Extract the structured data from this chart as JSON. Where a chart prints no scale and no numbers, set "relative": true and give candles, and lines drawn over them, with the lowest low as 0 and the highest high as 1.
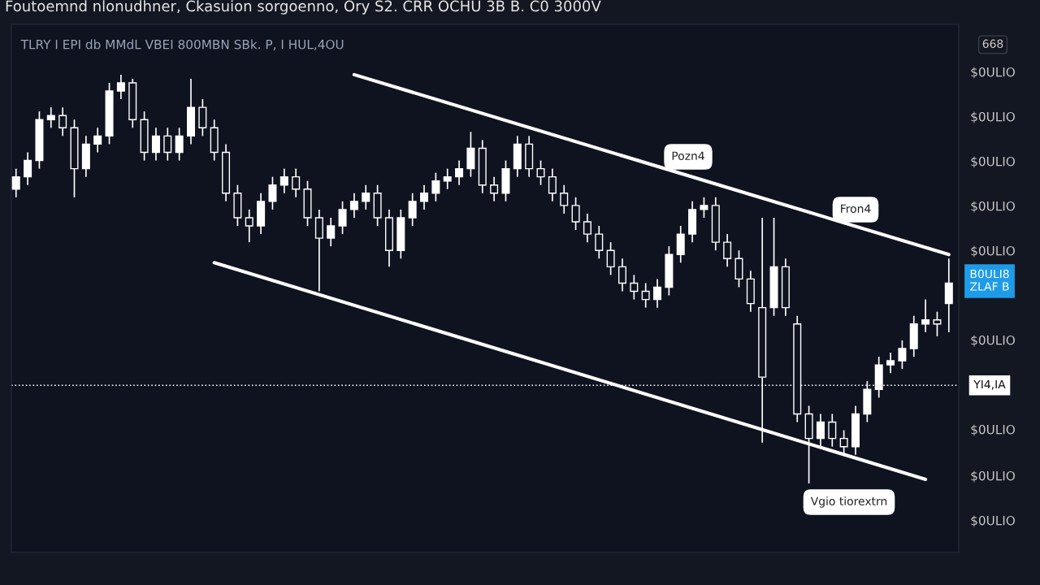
{
  "chart_data": {
    "type": "candlestick",
    "relative": true,
    "title": "Foutoemnd nlonudhner, Ckasuion sorgoenno, Ory S2. CRR OCHU 3B B. C0 3000V",
    "subtitle": "TLRY I EPI db MMdL VBEI 800MBN SBk. P, I HUL,4OU",
    "categories": [
      null,
      null,
      null,
      null,
      null,
      null,
      null,
      null,
      null,
      null,
      null,
      null,
      null,
      null,
      null,
      null,
      null,
      null,
      null,
      null,
      null,
      null,
      null,
      null,
      null,
      null,
      null,
      null,
      null,
      null,
      null,
      null,
      null,
      null,
      null,
      null,
      null,
      null,
      null,
      null,
      null,
      null,
      null,
      null,
      null,
      null,
      null,
      null,
      null,
      null,
      null,
      null,
      null,
      null,
      null,
      null,
      null,
      null,
      null,
      null,
      null,
      null,
      null,
      null,
      null,
      null,
      null,
      null,
      null,
      null,
      null,
      null,
      null,
      null,
      null,
      null,
      null,
      null,
      null,
      null,
      null
    ],
    "ohlc": [
      [
        0.72,
        0.77,
        0.7,
        0.75
      ],
      [
        0.75,
        0.81,
        0.73,
        0.79
      ],
      [
        0.79,
        0.91,
        0.77,
        0.89
      ],
      [
        0.89,
        0.92,
        0.87,
        0.9
      ],
      [
        0.9,
        0.92,
        0.85,
        0.87
      ],
      [
        0.87,
        0.89,
        0.7,
        0.77
      ],
      [
        0.77,
        0.85,
        0.75,
        0.83
      ],
      [
        0.83,
        0.87,
        0.81,
        0.85
      ],
      [
        0.85,
        0.98,
        0.83,
        0.96
      ],
      [
        0.96,
        1.0,
        0.94,
        0.98
      ],
      [
        0.98,
        0.99,
        0.87,
        0.89
      ],
      [
        0.89,
        0.91,
        0.79,
        0.81
      ],
      [
        0.81,
        0.87,
        0.79,
        0.85
      ],
      [
        0.85,
        0.87,
        0.79,
        0.81
      ],
      [
        0.81,
        0.87,
        0.79,
        0.85
      ],
      [
        0.85,
        0.99,
        0.83,
        0.92
      ],
      [
        0.92,
        0.94,
        0.85,
        0.87
      ],
      [
        0.87,
        0.89,
        0.79,
        0.81
      ],
      [
        0.81,
        0.83,
        0.69,
        0.71
      ],
      [
        0.71,
        0.73,
        0.63,
        0.65
      ],
      [
        0.65,
        0.67,
        0.59,
        0.63
      ],
      [
        0.63,
        0.71,
        0.61,
        0.69
      ],
      [
        0.69,
        0.75,
        0.67,
        0.73
      ],
      [
        0.73,
        0.77,
        0.71,
        0.75
      ],
      [
        0.75,
        0.77,
        0.7,
        0.72
      ],
      [
        0.72,
        0.74,
        0.63,
        0.65
      ],
      [
        0.65,
        0.67,
        0.47,
        0.6
      ],
      [
        0.6,
        0.65,
        0.58,
        0.63
      ],
      [
        0.63,
        0.69,
        0.61,
        0.67
      ],
      [
        0.67,
        0.71,
        0.65,
        0.69
      ],
      [
        0.69,
        0.73,
        0.67,
        0.71
      ],
      [
        0.71,
        0.73,
        0.63,
        0.65
      ],
      [
        0.65,
        0.67,
        0.53,
        0.57
      ],
      [
        0.57,
        0.67,
        0.55,
        0.65
      ],
      [
        0.65,
        0.71,
        0.63,
        0.69
      ],
      [
        0.69,
        0.73,
        0.67,
        0.71
      ],
      [
        0.71,
        0.76,
        0.69,
        0.74
      ],
      [
        0.74,
        0.77,
        0.72,
        0.75
      ],
      [
        0.75,
        0.79,
        0.73,
        0.77
      ],
      [
        0.77,
        0.86,
        0.75,
        0.82
      ],
      [
        0.82,
        0.84,
        0.71,
        0.73
      ],
      [
        0.73,
        0.75,
        0.69,
        0.71
      ],
      [
        0.71,
        0.79,
        0.69,
        0.77
      ],
      [
        0.77,
        0.85,
        0.75,
        0.83
      ],
      [
        0.83,
        0.85,
        0.75,
        0.77
      ],
      [
        0.77,
        0.79,
        0.73,
        0.75
      ],
      [
        0.75,
        0.77,
        0.69,
        0.71
      ],
      [
        0.71,
        0.73,
        0.66,
        0.68
      ],
      [
        0.68,
        0.7,
        0.62,
        0.64
      ],
      [
        0.64,
        0.66,
        0.59,
        0.61
      ],
      [
        0.61,
        0.63,
        0.55,
        0.57
      ],
      [
        0.57,
        0.59,
        0.51,
        0.53
      ],
      [
        0.53,
        0.55,
        0.47,
        0.49
      ],
      [
        0.49,
        0.51,
        0.45,
        0.47
      ],
      [
        0.47,
        0.49,
        0.43,
        0.45
      ],
      [
        0.45,
        0.5,
        0.43,
        0.48
      ],
      [
        0.48,
        0.58,
        0.46,
        0.56
      ],
      [
        0.56,
        0.63,
        0.54,
        0.61
      ],
      [
        0.61,
        0.69,
        0.59,
        0.67
      ],
      [
        0.67,
        0.7,
        0.65,
        0.68
      ],
      [
        0.68,
        0.7,
        0.57,
        0.59
      ],
      [
        0.59,
        0.61,
        0.53,
        0.55
      ],
      [
        0.55,
        0.57,
        0.48,
        0.5
      ],
      [
        0.5,
        0.52,
        0.42,
        0.44
      ],
      [
        0.43,
        0.65,
        0.1,
        0.26
      ],
      [
        0.43,
        0.65,
        0.41,
        0.53
      ],
      [
        0.53,
        0.55,
        0.41,
        0.43
      ],
      [
        0.39,
        0.41,
        0.15,
        0.17
      ],
      [
        0.17,
        0.19,
        0.0,
        0.11
      ],
      [
        0.11,
        0.17,
        0.09,
        0.15
      ],
      [
        0.15,
        0.17,
        0.09,
        0.11
      ],
      [
        0.11,
        0.13,
        0.07,
        0.09
      ],
      [
        0.09,
        0.19,
        0.07,
        0.17
      ],
      [
        0.17,
        0.25,
        0.15,
        0.23
      ],
      [
        0.23,
        0.31,
        0.21,
        0.29
      ],
      [
        0.29,
        0.32,
        0.27,
        0.3
      ],
      [
        0.3,
        0.35,
        0.28,
        0.33
      ],
      [
        0.33,
        0.41,
        0.31,
        0.39
      ],
      [
        0.39,
        0.45,
        0.37,
        0.4
      ],
      [
        0.4,
        0.42,
        0.36,
        0.39
      ],
      [
        0.44,
        0.55,
        0.37,
        0.49
      ]
    ],
    "color": "#ffffff",
    "series": [
      {
        "type": "line",
        "color": "#ffffff",
        "values": [
          null,
          null,
          null,
          null,
          null,
          null,
          null,
          null,
          null,
          null,
          null,
          null,
          null,
          null,
          null,
          null,
          null,
          null,
          null,
          null,
          null,
          null,
          null,
          null,
          null,
          null,
          null,
          null,
          null,
          1.0,
          null,
          null,
          null,
          null,
          null,
          null,
          null,
          null,
          null,
          null,
          null,
          null,
          null,
          null,
          null,
          null,
          null,
          null,
          null,
          null,
          null,
          null,
          null,
          null,
          null,
          null,
          null,
          null,
          null,
          null,
          null,
          null,
          null,
          null,
          null,
          null,
          null,
          null,
          null,
          null,
          null,
          null,
          null,
          null,
          null,
          null,
          null,
          null,
          null,
          null,
          0.56
        ]
      },
      {
        "type": "line",
        "color": "#ffffff",
        "values": [
          null,
          null,
          null,
          null,
          null,
          null,
          null,
          null,
          null,
          null,
          null,
          null,
          null,
          null,
          null,
          null,
          null,
          0.54,
          null,
          null,
          null,
          null,
          null,
          null,
          null,
          null,
          null,
          null,
          null,
          null,
          null,
          null,
          null,
          null,
          null,
          null,
          null,
          null,
          null,
          null,
          null,
          null,
          null,
          null,
          null,
          null,
          null,
          null,
          null,
          null,
          null,
          null,
          null,
          null,
          null,
          null,
          null,
          null,
          null,
          null,
          null,
          null,
          null,
          null,
          null,
          null,
          null,
          null,
          null,
          null,
          null,
          null,
          null,
          null,
          null,
          null,
          null,
          null,
          0.01,
          null,
          null
        ]
      }
    ],
    "ref_lines": [
      {
        "axis": "y",
        "value": 0.24,
        "label": "YI4,IA",
        "color": "#ffffff",
        "line_style": "dotted"
      }
    ],
    "annotations": [
      "668",
      "$0ULIO",
      "$0ULIO",
      "$0ULIO",
      "$0ULIO",
      "$0ULIO",
      "$0ULIO",
      "$0ULIO",
      "$0ULIO",
      "$0ULIO",
      "Pozn4",
      "Fron4",
      "Vgio tiorextrn",
      "B0ULI8\nZLAF B"
    ],
    "grid": false
  }
}
